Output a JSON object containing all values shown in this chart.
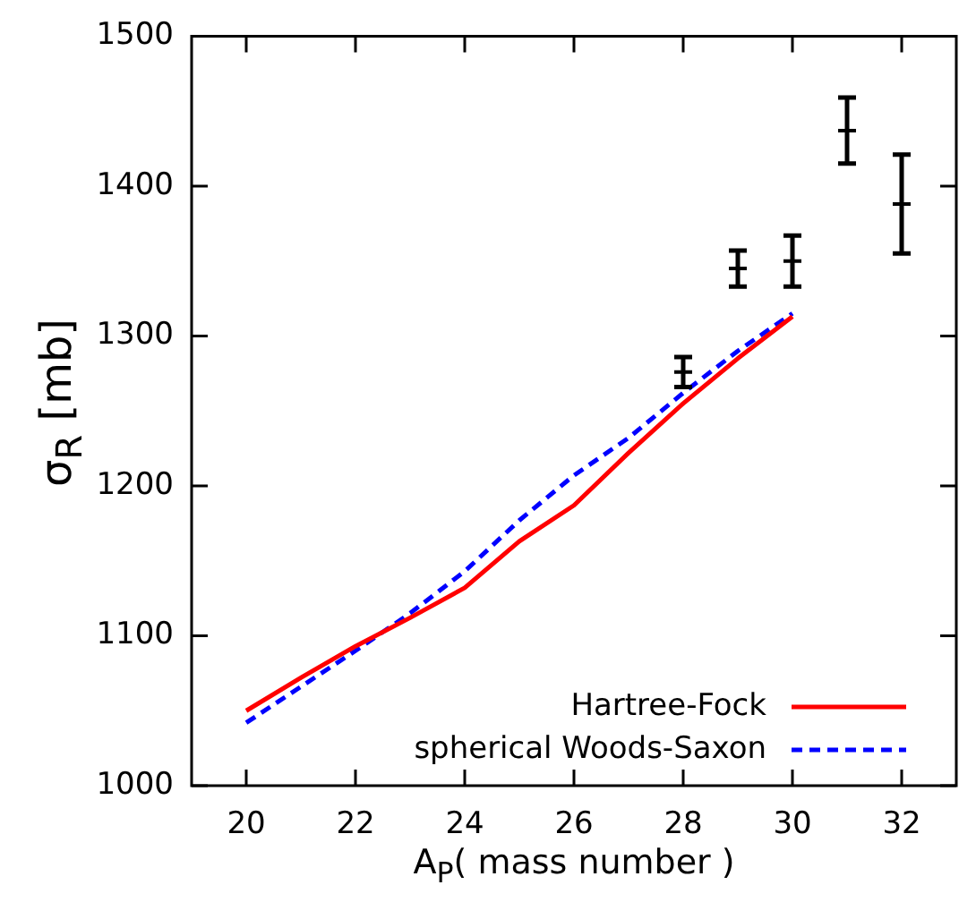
{
  "chart_data": {
    "type": "line",
    "xlabel": "A$_{P}$( mass number )",
    "ylabel": "σ$_{R}$ [mb]",
    "xlim": [
      19,
      33
    ],
    "xticks": [
      20,
      22,
      24,
      26,
      28,
      30,
      32
    ],
    "ylim": [
      1000,
      1500
    ],
    "yticks": [
      1000,
      1100,
      1200,
      1300,
      1400,
      1500
    ],
    "grid": false,
    "legend": "bottom right",
    "series": [
      {
        "name": "Hartree-Fock",
        "color": "#ff0000",
        "line_style": "solid",
        "x": [
          20,
          21,
          22,
          23,
          24,
          25,
          26,
          27,
          28,
          29,
          30
        ],
        "values": [
          1050,
          1072,
          1093,
          1112,
          1132,
          1163,
          1187,
          1222,
          1255,
          1285,
          1313
        ]
      },
      {
        "name": "spherical Woods-Saxon",
        "color": "#0000ff",
        "line_style": "dashed",
        "x": [
          20,
          21,
          22,
          23,
          24,
          25,
          26,
          27,
          28,
          29,
          30
        ],
        "values": [
          1042,
          1066,
          1090,
          1115,
          1143,
          1177,
          1207,
          1232,
          1262,
          1290,
          1315
        ]
      },
      {
        "type": "scatter",
        "marker": "cross",
        "color": "#000000",
        "x": [
          28,
          29,
          30,
          31,
          32
        ],
        "values": [
          1276,
          1345,
          1350,
          1437,
          1388
        ],
        "errors": [
          10,
          12,
          17,
          22,
          33
        ]
      }
    ]
  }
}
